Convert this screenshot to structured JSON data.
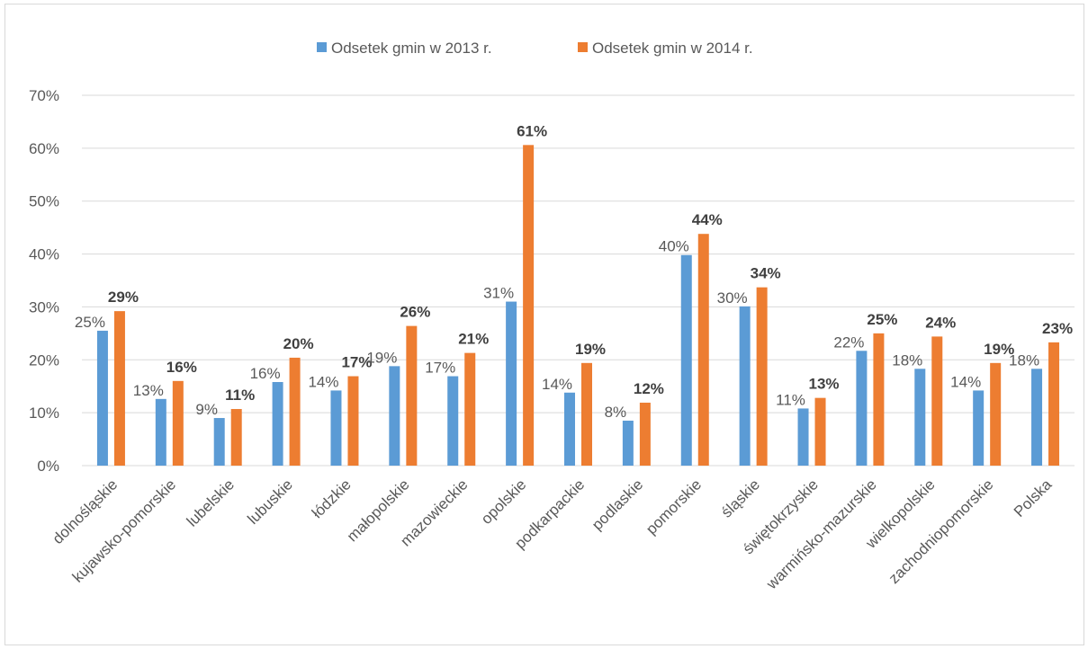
{
  "chart_data": {
    "type": "bar",
    "categories": [
      "dolnośląskie",
      "kujawsko-pomorskie",
      "lubelskie",
      "lubuskie",
      "łódzkie",
      "małopolskie",
      "mazowieckie",
      "opolskie",
      "podkarpackie",
      "podlaskie",
      "pomorskie",
      "śląskie",
      "świętokrzyskie",
      "warmińsko-mazurskie",
      "wielkopolskie",
      "zachodniopomorskie",
      "Polska"
    ],
    "series": [
      {
        "name": "Odsetek gmin w 2013 r.",
        "color": "#5b9bd5",
        "values": [
          25.5,
          12.6,
          9.0,
          15.8,
          14.2,
          18.8,
          16.9,
          31.0,
          13.8,
          8.5,
          39.8,
          30.1,
          10.8,
          21.7,
          18.3,
          14.2,
          18.3
        ],
        "labels": [
          "25%",
          "13%",
          "9%",
          "16%",
          "14%",
          "19%",
          "17%",
          "31%",
          "14%",
          "8%",
          "40%",
          "30%",
          "11%",
          "22%",
          "18%",
          "14%",
          "18%"
        ]
      },
      {
        "name": "Odsetek gmin w 2014 r.",
        "color": "#ed7d31",
        "values": [
          29.2,
          16.0,
          10.7,
          20.4,
          16.9,
          26.4,
          21.3,
          60.6,
          19.4,
          11.9,
          43.8,
          33.7,
          12.8,
          25.0,
          24.4,
          19.4,
          23.3
        ],
        "labels": [
          "29%",
          "16%",
          "11%",
          "20%",
          "17%",
          "26%",
          "21%",
          "61%",
          "19%",
          "12%",
          "44%",
          "34%",
          "13%",
          "25%",
          "24%",
          "19%",
          "23%"
        ]
      }
    ],
    "y_ticks": [
      "0%",
      "10%",
      "20%",
      "30%",
      "40%",
      "50%",
      "60%",
      "70%"
    ],
    "ylim": [
      0,
      70
    ],
    "grid": true,
    "legend_position": "top-center"
  }
}
